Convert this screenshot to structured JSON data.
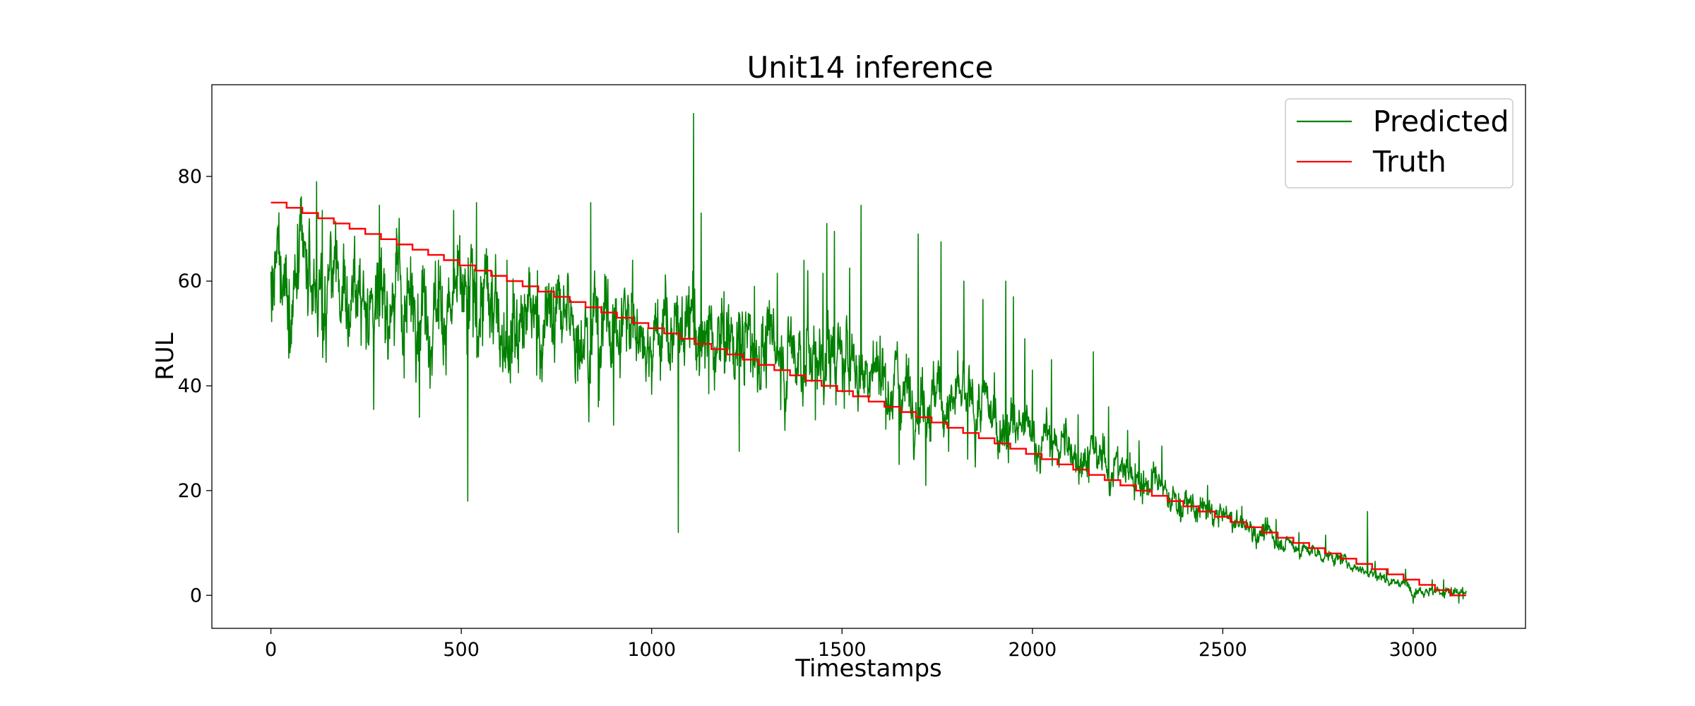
{
  "chart_data": {
    "type": "line",
    "title": "Unit14 inference",
    "xlabel": "Timestamps",
    "ylabel": "RUL",
    "xlim": [
      -155,
      3295
    ],
    "ylim": [
      -6.3,
      97.5
    ],
    "xticks": [
      0,
      500,
      1000,
      1500,
      2000,
      2500,
      3000
    ],
    "yticks": [
      0,
      20,
      40,
      60,
      80
    ],
    "grid": false,
    "legend_position": "top-right",
    "n_points": 3140,
    "series": [
      {
        "name": "Predicted",
        "color": "#008000",
        "style": "noisy",
        "trend": [
          [
            0,
            58
          ],
          [
            100,
            58
          ],
          [
            300,
            57
          ],
          [
            500,
            55
          ],
          [
            700,
            53
          ],
          [
            900,
            52
          ],
          [
            1100,
            50
          ],
          [
            1300,
            47
          ],
          [
            1500,
            45
          ],
          [
            1700,
            39
          ],
          [
            1900,
            34
          ],
          [
            2000,
            30
          ],
          [
            2100,
            28
          ],
          [
            2200,
            25
          ],
          [
            2300,
            22
          ],
          [
            2400,
            17
          ],
          [
            2500,
            15
          ],
          [
            2600,
            12
          ],
          [
            2700,
            9
          ],
          [
            2800,
            7
          ],
          [
            2900,
            4
          ],
          [
            3000,
            1.5
          ],
          [
            3139,
            0
          ]
        ],
        "spikes": [
          [
            5,
            54.5
          ],
          [
            40,
            65
          ],
          [
            100,
            69.5
          ],
          [
            120,
            79
          ],
          [
            135,
            73.5
          ],
          [
            145,
            44.5
          ],
          [
            250,
            47
          ],
          [
            270,
            35.5
          ],
          [
            285,
            74.5
          ],
          [
            350,
            41.5
          ],
          [
            390,
            34
          ],
          [
            440,
            64
          ],
          [
            480,
            73.5
          ],
          [
            515,
            46
          ],
          [
            517,
            18
          ],
          [
            525,
            64.5
          ],
          [
            540,
            75
          ],
          [
            620,
            64
          ],
          [
            650,
            42.5
          ],
          [
            700,
            62
          ],
          [
            780,
            61.5
          ],
          [
            800,
            40.5
          ],
          [
            840,
            75
          ],
          [
            860,
            36
          ],
          [
            900,
            32.5
          ],
          [
            950,
            64
          ],
          [
            1070,
            12
          ],
          [
            1080,
            57
          ],
          [
            1110,
            92
          ],
          [
            1130,
            73
          ],
          [
            1150,
            38.5
          ],
          [
            1190,
            58
          ],
          [
            1230,
            27.5
          ],
          [
            1270,
            59
          ],
          [
            1330,
            61.5
          ],
          [
            1350,
            31.5
          ],
          [
            1400,
            64
          ],
          [
            1410,
            62
          ],
          [
            1430,
            33.5
          ],
          [
            1450,
            61.5
          ],
          [
            1460,
            71
          ],
          [
            1480,
            69.5
          ],
          [
            1520,
            62.5
          ],
          [
            1550,
            74.5
          ],
          [
            1600,
            49.5
          ],
          [
            1650,
            25
          ],
          [
            1700,
            69
          ],
          [
            1720,
            21
          ],
          [
            1760,
            67.5
          ],
          [
            1780,
            27.5
          ],
          [
            1820,
            60
          ],
          [
            1830,
            26
          ],
          [
            1850,
            24.5
          ],
          [
            1870,
            56.5
          ],
          [
            1900,
            42.5
          ],
          [
            1930,
            60
          ],
          [
            1950,
            57
          ],
          [
            1980,
            49
          ],
          [
            2000,
            43
          ],
          [
            2050,
            45
          ],
          [
            2120,
            34.5
          ],
          [
            2160,
            46.5
          ],
          [
            2200,
            36
          ],
          [
            2250,
            31.5
          ],
          [
            2280,
            29.5
          ],
          [
            2340,
            28.5
          ],
          [
            2460,
            21
          ],
          [
            2550,
            17
          ],
          [
            2640,
            14.5
          ],
          [
            2700,
            12
          ],
          [
            2770,
            11.5
          ],
          [
            2800,
            8
          ],
          [
            2880,
            16
          ],
          [
            2900,
            6.5
          ],
          [
            2930,
            5
          ],
          [
            2980,
            5
          ],
          [
            3000,
            -1.5
          ],
          [
            3050,
            3
          ],
          [
            3080,
            3
          ],
          [
            3100,
            1.5
          ],
          [
            3120,
            -1.5
          ],
          [
            3130,
            1.5
          ]
        ]
      },
      {
        "name": "Truth",
        "color": "#ff0000",
        "style": "step",
        "x_max": 3139,
        "y_start": 75
      }
    ]
  }
}
